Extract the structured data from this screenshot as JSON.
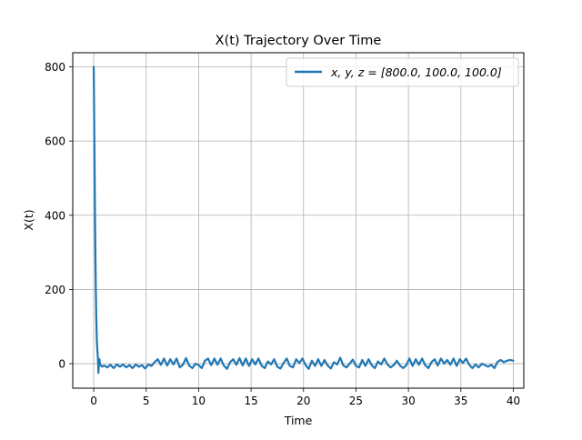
{
  "chart_data": {
    "type": "line",
    "title": "X(t) Trajectory Over Time",
    "xlabel": "Time",
    "ylabel": "X(t)",
    "xlim": [
      -2,
      41
    ],
    "ylim": [
      -66,
      838
    ],
    "xticks": [
      0,
      5,
      10,
      15,
      20,
      25,
      30,
      35,
      40
    ],
    "xtick_labels": [
      "0",
      "5",
      "10",
      "15",
      "20",
      "25",
      "30",
      "35",
      "40"
    ],
    "yticks": [
      0,
      200,
      400,
      600,
      800
    ],
    "ytick_labels": [
      "0",
      "200",
      "400",
      "600",
      "800"
    ],
    "grid": true,
    "legend_position": "top-right",
    "series": [
      {
        "name": "x, y, z = [800.0, 100.0, 100.0]",
        "color": "#1f77b4",
        "x": [
          0,
          0.05,
          0.1,
          0.15,
          0.2,
          0.25,
          0.3,
          0.35,
          0.4,
          0.45,
          0.5,
          0.55,
          0.6,
          0.7,
          0.8,
          1.0,
          1.3,
          1.6,
          1.9,
          2.2,
          2.5,
          2.8,
          3.1,
          3.4,
          3.7,
          4.0,
          4.3,
          4.6,
          4.9,
          5.2,
          5.5,
          5.8,
          6.1,
          6.4,
          6.7,
          7.0,
          7.3,
          7.6,
          7.9,
          8.2,
          8.5,
          8.8,
          9.1,
          9.4,
          9.7,
          10.0,
          10.3,
          10.6,
          10.9,
          11.2,
          11.5,
          11.8,
          12.1,
          12.4,
          12.7,
          13.0,
          13.3,
          13.6,
          13.9,
          14.2,
          14.5,
          14.8,
          15.1,
          15.4,
          15.7,
          16.0,
          16.3,
          16.6,
          16.9,
          17.2,
          17.5,
          17.8,
          18.1,
          18.4,
          18.7,
          19.0,
          19.3,
          19.6,
          19.9,
          20.2,
          20.5,
          20.8,
          21.1,
          21.4,
          21.7,
          22.0,
          22.3,
          22.6,
          22.9,
          23.2,
          23.5,
          23.8,
          24.1,
          24.4,
          24.7,
          25.0,
          25.3,
          25.6,
          25.9,
          26.2,
          26.5,
          26.8,
          27.1,
          27.4,
          27.7,
          28.0,
          28.3,
          28.6,
          28.9,
          29.2,
          29.5,
          29.8,
          30.1,
          30.4,
          30.7,
          31.0,
          31.3,
          31.6,
          31.9,
          32.2,
          32.5,
          32.8,
          33.1,
          33.4,
          33.7,
          34.0,
          34.3,
          34.6,
          34.9,
          35.2,
          35.5,
          35.8,
          36.1,
          36.4,
          36.7,
          37.0,
          37.3,
          37.6,
          37.9,
          38.2,
          38.5,
          38.8,
          39.1,
          39.4,
          39.7,
          40.0
        ],
        "y": [
          800,
          640,
          470,
          320,
          200,
          115,
          60,
          35,
          15,
          -25,
          5,
          12,
          -2,
          -5,
          -8,
          -5,
          -10,
          -3,
          -12,
          -2,
          -8,
          -2,
          -10,
          -4,
          -12,
          -2,
          -8,
          -4,
          -13,
          -2,
          -6,
          4,
          12,
          -3,
          14,
          -5,
          12,
          -2,
          14,
          -10,
          -3,
          15,
          -5,
          -12,
          0,
          -4,
          -12,
          8,
          14,
          -4,
          14,
          -3,
          14,
          -5,
          -14,
          4,
          12,
          -3,
          15,
          -5,
          14,
          -6,
          12,
          -2,
          14,
          -5,
          -12,
          6,
          -2,
          12,
          -8,
          -13,
          2,
          14,
          -6,
          -10,
          12,
          2,
          14,
          -4,
          -14,
          8,
          -6,
          12,
          -6,
          10,
          -5,
          -13,
          4,
          -2,
          16,
          -5,
          -10,
          0,
          11,
          -6,
          -10,
          10,
          -6,
          12,
          -4,
          -12,
          6,
          -2,
          14,
          -2,
          -10,
          -4,
          8,
          -5,
          -12,
          -4,
          14,
          -6,
          12,
          -3,
          14,
          -4,
          -12,
          4,
          12,
          -5,
          14,
          0,
          10,
          -3,
          14,
          -6,
          12,
          2,
          14,
          -3,
          -12,
          -2,
          -10,
          0,
          -4,
          -8,
          -3,
          -12,
          5,
          10,
          4,
          8,
          10,
          8
        ]
      }
    ]
  }
}
